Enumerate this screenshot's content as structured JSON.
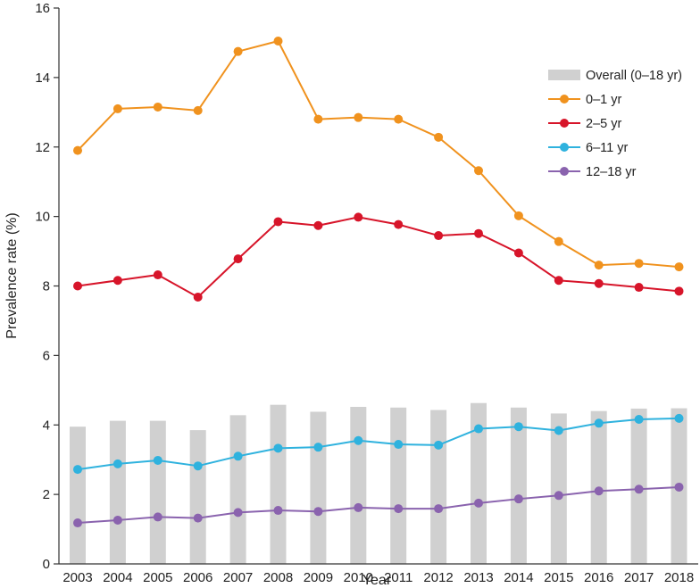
{
  "chart_data": {
    "type": "bar+line",
    "xlabel": "Year",
    "ylabel": "Prevalence rate (%)",
    "ylim": [
      0,
      16
    ],
    "yticks": [
      0,
      2,
      4,
      6,
      8,
      10,
      12,
      14,
      16
    ],
    "categories": [
      "2003",
      "2004",
      "2005",
      "2006",
      "2007",
      "2008",
      "2009",
      "2010",
      "2011",
      "2012",
      "2013",
      "2014",
      "2015",
      "2016",
      "2017",
      "2018"
    ],
    "bars": {
      "name": "Overall (0–18 yr)",
      "color": "#d0d0d0",
      "values": [
        3.95,
        4.12,
        4.12,
        3.85,
        4.28,
        4.58,
        4.38,
        4.52,
        4.5,
        4.43,
        4.63,
        4.5,
        4.33,
        4.4,
        4.47,
        4.48
      ]
    },
    "series": [
      {
        "name": "0–1 yr",
        "color": "#f0921e",
        "values": [
          11.9,
          13.1,
          13.15,
          13.05,
          14.75,
          15.05,
          12.8,
          12.85,
          12.8,
          12.28,
          11.32,
          10.02,
          9.28,
          8.6,
          8.65,
          8.55
        ]
      },
      {
        "name": "2–5 yr",
        "color": "#d7152a",
        "values": [
          8.0,
          8.16,
          8.32,
          7.68,
          8.78,
          9.85,
          9.74,
          9.98,
          9.77,
          9.45,
          9.51,
          8.95,
          8.16,
          8.07,
          7.96,
          7.85
        ]
      },
      {
        "name": "6–11 yr",
        "color": "#2fb2de",
        "values": [
          2.72,
          2.88,
          2.98,
          2.82,
          3.1,
          3.33,
          3.36,
          3.55,
          3.44,
          3.42,
          3.89,
          3.95,
          3.84,
          4.05,
          4.16,
          4.19
        ]
      },
      {
        "name": "12–18 yr",
        "color": "#8a63ae",
        "values": [
          1.18,
          1.26,
          1.35,
          1.32,
          1.48,
          1.54,
          1.51,
          1.62,
          1.59,
          1.59,
          1.75,
          1.87,
          1.97,
          2.1,
          2.15,
          2.21
        ]
      }
    ],
    "legend_position": "top-right"
  }
}
